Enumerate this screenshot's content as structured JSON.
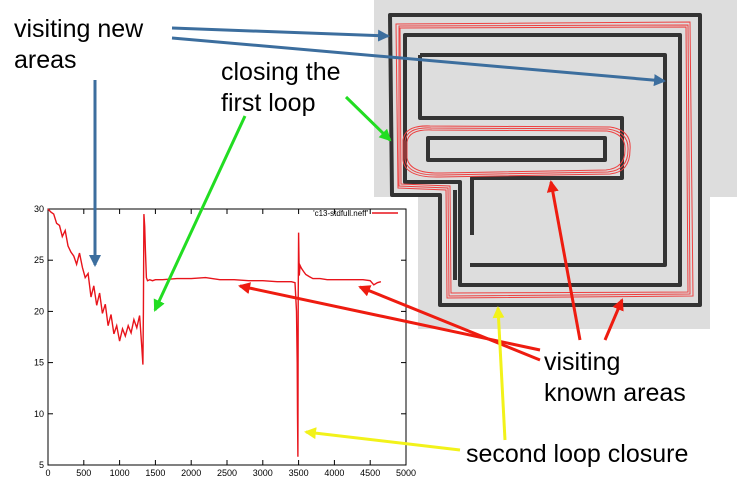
{
  "annotations": {
    "visiting_new_areas": [
      "visiting new",
      "areas"
    ],
    "closing_first_loop": [
      "closing the",
      "first loop"
    ],
    "visiting_known_areas": [
      "visiting",
      "known areas"
    ],
    "second_loop_closure": "second loop closure"
  },
  "colors": {
    "series": "#e8141b",
    "arrow_blue": "#3c6e9e",
    "arrow_green": "#22dd22",
    "arrow_red": "#ee1c10",
    "arrow_yellow": "#f2f21a",
    "map_background": "#dddddd",
    "map_panel": "#e8e8e8",
    "map_wall": "#333333",
    "trajectory": "#ee4040"
  },
  "chart_data": {
    "type": "line",
    "title": "",
    "xlabel": "",
    "ylabel": "",
    "xlim": [
      0,
      5000
    ],
    "ylim": [
      5,
      30
    ],
    "xticks": [
      0,
      500,
      1000,
      1500,
      2000,
      2500,
      3000,
      3500,
      4000,
      4500,
      5000
    ],
    "yticks": [
      5,
      10,
      15,
      20,
      25,
      30
    ],
    "legend_position": "top-right",
    "series": [
      {
        "name": "'c13-stdfull.neff'",
        "x": [
          0,
          40,
          80,
          120,
          160,
          200,
          240,
          280,
          320,
          360,
          400,
          440,
          480,
          520,
          560,
          600,
          640,
          680,
          720,
          760,
          800,
          840,
          880,
          920,
          960,
          1000,
          1040,
          1080,
          1120,
          1160,
          1200,
          1240,
          1280,
          1310,
          1325,
          1332,
          1340,
          1350,
          1360,
          1375,
          1390,
          1420,
          1460,
          1500,
          1600,
          1800,
          2000,
          2200,
          2400,
          2600,
          2800,
          3000,
          3200,
          3400,
          3450,
          3470,
          3480,
          3485,
          3490,
          3495,
          3500,
          3505,
          3510,
          3520,
          3540,
          3570,
          3600,
          3650,
          3700,
          3800,
          3900,
          4000,
          4100,
          4200,
          4300,
          4400,
          4500,
          4550,
          4600,
          4650
        ],
        "y": [
          30,
          29.7,
          29.5,
          28.6,
          28.4,
          27.3,
          27.9,
          26.4,
          25.8,
          25.4,
          24.6,
          25.7,
          24.3,
          23.3,
          23.7,
          21.4,
          22.5,
          20.6,
          21.8,
          19.8,
          20.7,
          18.6,
          19.7,
          17.8,
          18.6,
          17.1,
          18.3,
          17.6,
          18.6,
          17.9,
          19.2,
          18.4,
          19.6,
          16.5,
          14.8,
          20.0,
          29.5,
          28.3,
          26.0,
          23.3,
          23.0,
          23.1,
          23.0,
          23.1,
          23.1,
          23.2,
          23.2,
          23.3,
          23.1,
          23.1,
          23.0,
          23.0,
          22.9,
          22.9,
          22.8,
          20.0,
          15.0,
          10.0,
          5.8,
          21.0,
          27.7,
          25.0,
          23.5,
          24.5,
          24.2,
          23.9,
          23.6,
          23.4,
          23.2,
          23.2,
          23.1,
          23.1,
          23.1,
          23.1,
          23.1,
          23.1,
          23.0,
          22.6,
          22.8,
          22.9
        ]
      }
    ]
  }
}
